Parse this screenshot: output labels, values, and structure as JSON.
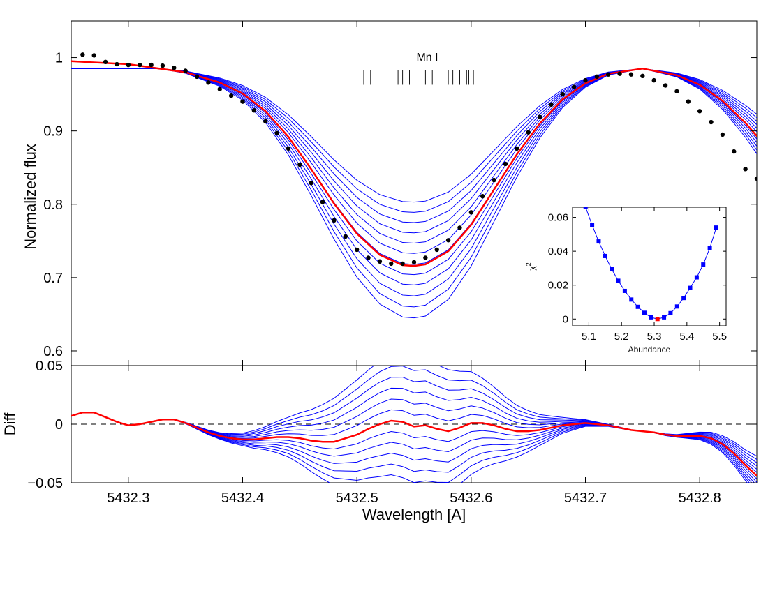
{
  "chart_data": [
    {
      "type": "line",
      "panel": "main",
      "ylabel": "Normalized flux",
      "xlim": [
        5432.25,
        5432.85
      ],
      "ylim": [
        0.58,
        1.05
      ],
      "yticks": [
        0.6,
        0.7,
        0.8,
        0.9,
        1
      ],
      "ytick_labels": [
        "0.6",
        "0.7",
        "0.8",
        "0.9",
        "1"
      ],
      "annotation": "Mn I",
      "line_markers": [
        5432.506,
        5432.512,
        5432.536,
        5432.54,
        5432.546,
        5432.56,
        5432.566,
        5432.58,
        5432.584,
        5432.59,
        5432.596,
        5432.598,
        5432.602
      ],
      "marker_y": [
        0.963,
        0.983
      ],
      "colors": {
        "observed": "#000000",
        "best_fit": "#ff0000",
        "model_grid": "#0000ff"
      },
      "observed": {
        "x": [
          5432.26,
          5432.27,
          5432.28,
          5432.29,
          5432.3,
          5432.31,
          5432.32,
          5432.33,
          5432.34,
          5432.35,
          5432.36,
          5432.37,
          5432.38,
          5432.39,
          5432.4,
          5432.41,
          5432.42,
          5432.43,
          5432.44,
          5432.45,
          5432.46,
          5432.47,
          5432.48,
          5432.49,
          5432.5,
          5432.51,
          5432.52,
          5432.53,
          5432.54,
          5432.55,
          5432.56,
          5432.57,
          5432.58,
          5432.59,
          5432.6,
          5432.61,
          5432.62,
          5432.63,
          5432.64,
          5432.65,
          5432.66,
          5432.67,
          5432.68,
          5432.69,
          5432.7,
          5432.71,
          5432.72,
          5432.73,
          5432.74,
          5432.75,
          5432.76,
          5432.77,
          5432.78,
          5432.79,
          5432.8,
          5432.81,
          5432.82,
          5432.83,
          5432.84,
          5432.85
        ],
        "y": [
          1.004,
          1.003,
          0.994,
          0.991,
          0.99,
          0.99,
          0.99,
          0.989,
          0.986,
          0.982,
          0.974,
          0.966,
          0.957,
          0.948,
          0.94,
          0.928,
          0.913,
          0.897,
          0.876,
          0.854,
          0.829,
          0.803,
          0.778,
          0.756,
          0.738,
          0.727,
          0.722,
          0.719,
          0.719,
          0.721,
          0.727,
          0.738,
          0.751,
          0.768,
          0.789,
          0.811,
          0.833,
          0.855,
          0.876,
          0.898,
          0.919,
          0.936,
          0.95,
          0.96,
          0.969,
          0.974,
          0.977,
          0.978,
          0.977,
          0.975,
          0.969,
          0.962,
          0.954,
          0.94,
          0.927,
          0.912,
          0.895,
          0.872,
          0.848,
          0.835
        ]
      },
      "best_fit": {
        "x": [
          5432.25,
          5432.3,
          5432.35,
          5432.38,
          5432.4,
          5432.42,
          5432.44,
          5432.46,
          5432.48,
          5432.5,
          5432.52,
          5432.54,
          5432.55,
          5432.56,
          5432.58,
          5432.6,
          5432.62,
          5432.64,
          5432.66,
          5432.68,
          5432.7,
          5432.72,
          5432.75,
          5432.78,
          5432.8,
          5432.82,
          5432.84,
          5432.85
        ],
        "y": [
          0.995,
          0.991,
          0.98,
          0.966,
          0.951,
          0.927,
          0.892,
          0.848,
          0.801,
          0.76,
          0.731,
          0.717,
          0.716,
          0.718,
          0.736,
          0.772,
          0.82,
          0.868,
          0.91,
          0.943,
          0.965,
          0.978,
          0.985,
          0.976,
          0.963,
          0.941,
          0.911,
          0.893
        ]
      },
      "model_grid_depths": [
        0.803,
        0.789,
        0.775,
        0.761,
        0.747,
        0.733,
        0.718,
        0.704,
        0.69,
        0.675,
        0.66,
        0.645
      ]
    },
    {
      "type": "line",
      "panel": "residual",
      "xlabel": "Wavelength [A]",
      "ylabel": "Diff",
      "xlim": [
        5432.25,
        5432.85
      ],
      "ylim": [
        -0.05,
        0.05
      ],
      "xticks": [
        5432.3,
        5432.4,
        5432.5,
        5432.6,
        5432.7,
        5432.8
      ],
      "xtick_labels": [
        "5432.3",
        "5432.4",
        "5432.5",
        "5432.6",
        "5432.7",
        "5432.8"
      ],
      "yticks": [
        -0.05,
        0,
        0.05
      ],
      "ytick_labels": [
        "−0.05",
        "0",
        "0.05"
      ],
      "zero_line": "dashed",
      "best_fit": {
        "x": [
          5432.25,
          5432.26,
          5432.27,
          5432.28,
          5432.29,
          5432.3,
          5432.31,
          5432.32,
          5432.33,
          5432.34,
          5432.35,
          5432.36,
          5432.37,
          5432.38,
          5432.39,
          5432.4,
          5432.41,
          5432.42,
          5432.43,
          5432.44,
          5432.45,
          5432.46,
          5432.47,
          5432.48,
          5432.49,
          5432.5,
          5432.51,
          5432.52,
          5432.53,
          5432.54,
          5432.55,
          5432.56,
          5432.57,
          5432.58,
          5432.59,
          5432.6,
          5432.61,
          5432.62,
          5432.63,
          5432.64,
          5432.65,
          5432.66,
          5432.67,
          5432.68,
          5432.69,
          5432.7,
          5432.71,
          5432.72,
          5432.73,
          5432.74,
          5432.75,
          5432.76,
          5432.77,
          5432.78,
          5432.79,
          5432.8,
          5432.81,
          5432.82,
          5432.83,
          5432.84,
          5432.85
        ],
        "y": [
          0.007,
          0.01,
          0.01,
          0.006,
          0.002,
          -0.001,
          0.0,
          0.002,
          0.004,
          0.004,
          0.001,
          -0.003,
          -0.007,
          -0.01,
          -0.012,
          -0.013,
          -0.013,
          -0.012,
          -0.011,
          -0.011,
          -0.012,
          -0.014,
          -0.015,
          -0.015,
          -0.012,
          -0.009,
          -0.004,
          0.0,
          0.003,
          0.002,
          -0.002,
          -0.001,
          -0.004,
          -0.006,
          -0.003,
          0.001,
          0.001,
          -0.001,
          -0.004,
          -0.006,
          -0.006,
          -0.005,
          -0.003,
          -0.001,
          0.0,
          0.001,
          0.0,
          -0.001,
          -0.003,
          -0.005,
          -0.006,
          -0.007,
          -0.009,
          -0.01,
          -0.01,
          -0.01,
          -0.012,
          -0.017,
          -0.025,
          -0.035,
          -0.044
        ]
      },
      "model_grid_offsets": [
        0.0574,
        0.0478,
        0.0383,
        0.0287,
        0.0191,
        0.0096,
        -0.0096,
        -0.0191,
        -0.0287,
        -0.0383,
        -0.0478,
        -0.0574
      ]
    },
    {
      "type": "scatter",
      "panel": "inset",
      "xlabel": "Abundance",
      "ylabel": "χ",
      "ylabel_superscript": "2",
      "xlim": [
        5.05,
        5.52
      ],
      "ylim": [
        -0.004,
        0.066
      ],
      "xticks": [
        5.1,
        5.2,
        5.3,
        5.4,
        5.5
      ],
      "xtick_labels": [
        "5.1",
        "5.2",
        "5.3",
        "5.4",
        "5.5"
      ],
      "yticks": [
        0,
        0.02,
        0.04,
        0.06
      ],
      "ytick_labels": [
        "0",
        "0.02",
        "0.04",
        "0.06"
      ],
      "x": [
        5.09,
        5.11,
        5.13,
        5.15,
        5.17,
        5.19,
        5.21,
        5.23,
        5.25,
        5.27,
        5.29,
        5.31,
        5.33,
        5.35,
        5.37,
        5.39,
        5.41,
        5.43,
        5.45,
        5.47,
        5.49
      ],
      "y": [
        0.066,
        0.0554,
        0.0458,
        0.0372,
        0.0294,
        0.0226,
        0.0166,
        0.0115,
        0.0072,
        0.0037,
        0.001,
        0.0,
        0.001,
        0.0035,
        0.0074,
        0.0124,
        0.0184,
        0.0246,
        0.0322,
        0.0418,
        0.054
      ],
      "best_index": 11,
      "colors": {
        "points": "#0000ff",
        "best": "#ff0000"
      }
    }
  ]
}
